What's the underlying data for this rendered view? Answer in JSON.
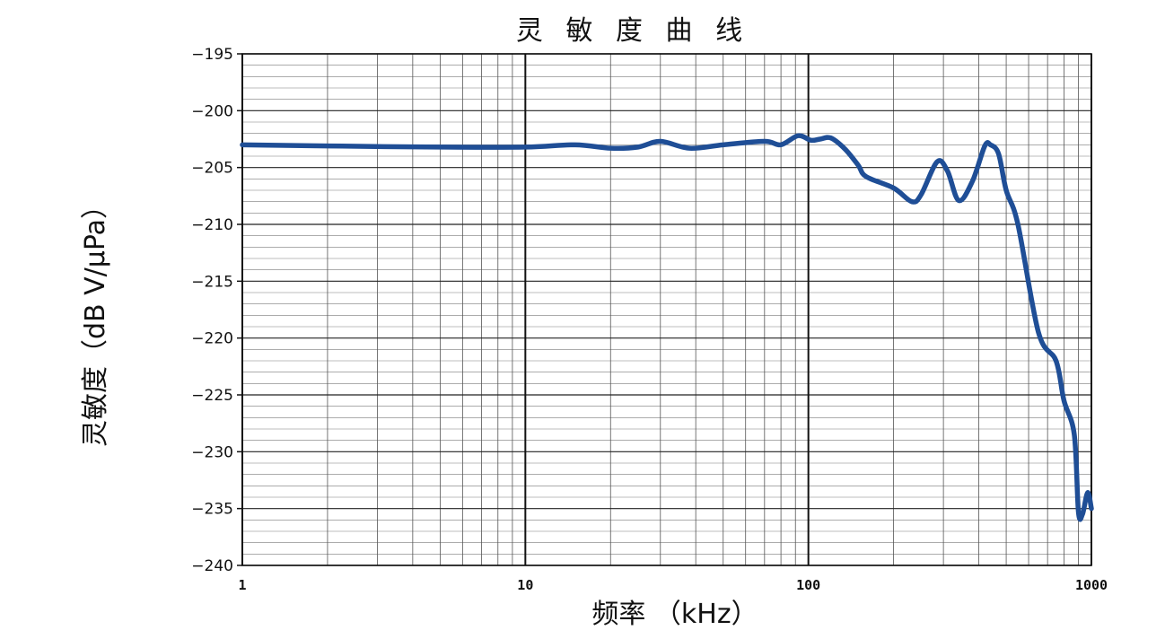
{
  "chart_data": {
    "type": "line",
    "title": "灵 敏 度 曲 线",
    "xlabel": "频率 （kHz）",
    "ylabel": "灵敏度（dB V/μPa）",
    "x_scale": "log",
    "xlim": [
      1,
      1000
    ],
    "ylim": [
      -240,
      -195
    ],
    "x_ticks": [
      1,
      10,
      100,
      1000
    ],
    "x_tick_labels": [
      "1",
      "10",
      "100",
      "1000"
    ],
    "y_ticks": [
      -195,
      -200,
      -205,
      -210,
      -215,
      -220,
      -225,
      -230,
      -235,
      -240
    ],
    "y_tick_labels": [
      "−195",
      "−200",
      "−205",
      "−210",
      "−215",
      "−220",
      "−225",
      "−230",
      "−235",
      "−240"
    ],
    "grid": true,
    "series": [
      {
        "color": "#1f4e96",
        "x": [
          1,
          2,
          5,
          10,
          15,
          20,
          25,
          30,
          38,
          50,
          70,
          80,
          92,
          102,
          110,
          120,
          135,
          150,
          160,
          200,
          232,
          250,
          285,
          310,
          340,
          380,
          420,
          440,
          470,
          500,
          550,
          650,
          750,
          800,
          870,
          900,
          930,
          970,
          1000
        ],
        "y": [
          -203.0,
          -203.1,
          -203.2,
          -203.2,
          -203.0,
          -203.3,
          -203.2,
          -202.7,
          -203.3,
          -203.0,
          -202.7,
          -203.0,
          -202.2,
          -202.6,
          -202.5,
          -202.4,
          -203.4,
          -204.8,
          -205.8,
          -206.8,
          -208.0,
          -207.4,
          -204.5,
          -205.3,
          -207.9,
          -206.2,
          -203.1,
          -203.0,
          -203.8,
          -207.0,
          -210.0,
          -219.5,
          -222.0,
          -225.5,
          -228.5,
          -235.3,
          -235.5,
          -233.6,
          -235.0
        ]
      }
    ]
  }
}
